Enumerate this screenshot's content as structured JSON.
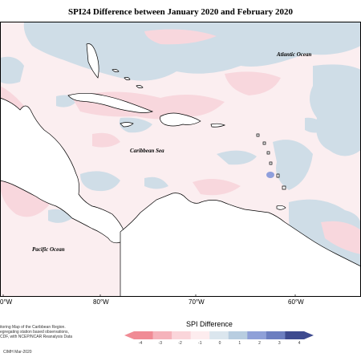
{
  "title": "SPI24 Difference between January 2020 and February 2020",
  "labels": {
    "atlantic": "Atlantic Ocean",
    "caribbean": "Caribbean Sea",
    "pacific": "Pacific Ocean"
  },
  "longitude_ticks": [
    "0°W",
    "80°W",
    "70°W",
    "60°W"
  ],
  "legend": {
    "title": "SPI Difference",
    "ticks": [
      "-4",
      "-3",
      "-2",
      "-1",
      "0",
      "1",
      "2",
      "3",
      "4"
    ],
    "colors": [
      "#f08b95",
      "#f5b3bb",
      "#fad5da",
      "#fdecee",
      "#dbe6ee",
      "#b8cde0",
      "#8fa0d8",
      "#6c7ec0",
      "#3d4a8f"
    ]
  },
  "footer": {
    "line1": "itoring Map of the Caribbean Region.",
    "line2": "egregating station based observations,",
    "line3": "CDF, with NCEP/NCAR Reanalysis Data",
    "credit": "CIMH Mar-2020"
  },
  "colors": {
    "ocean_base": "#fbeef0",
    "positive": "#cfdde7",
    "negative": "#f8d7dd",
    "strong_positive": "#8f9fdc",
    "land": "#ffffff",
    "coast": "#000000"
  }
}
